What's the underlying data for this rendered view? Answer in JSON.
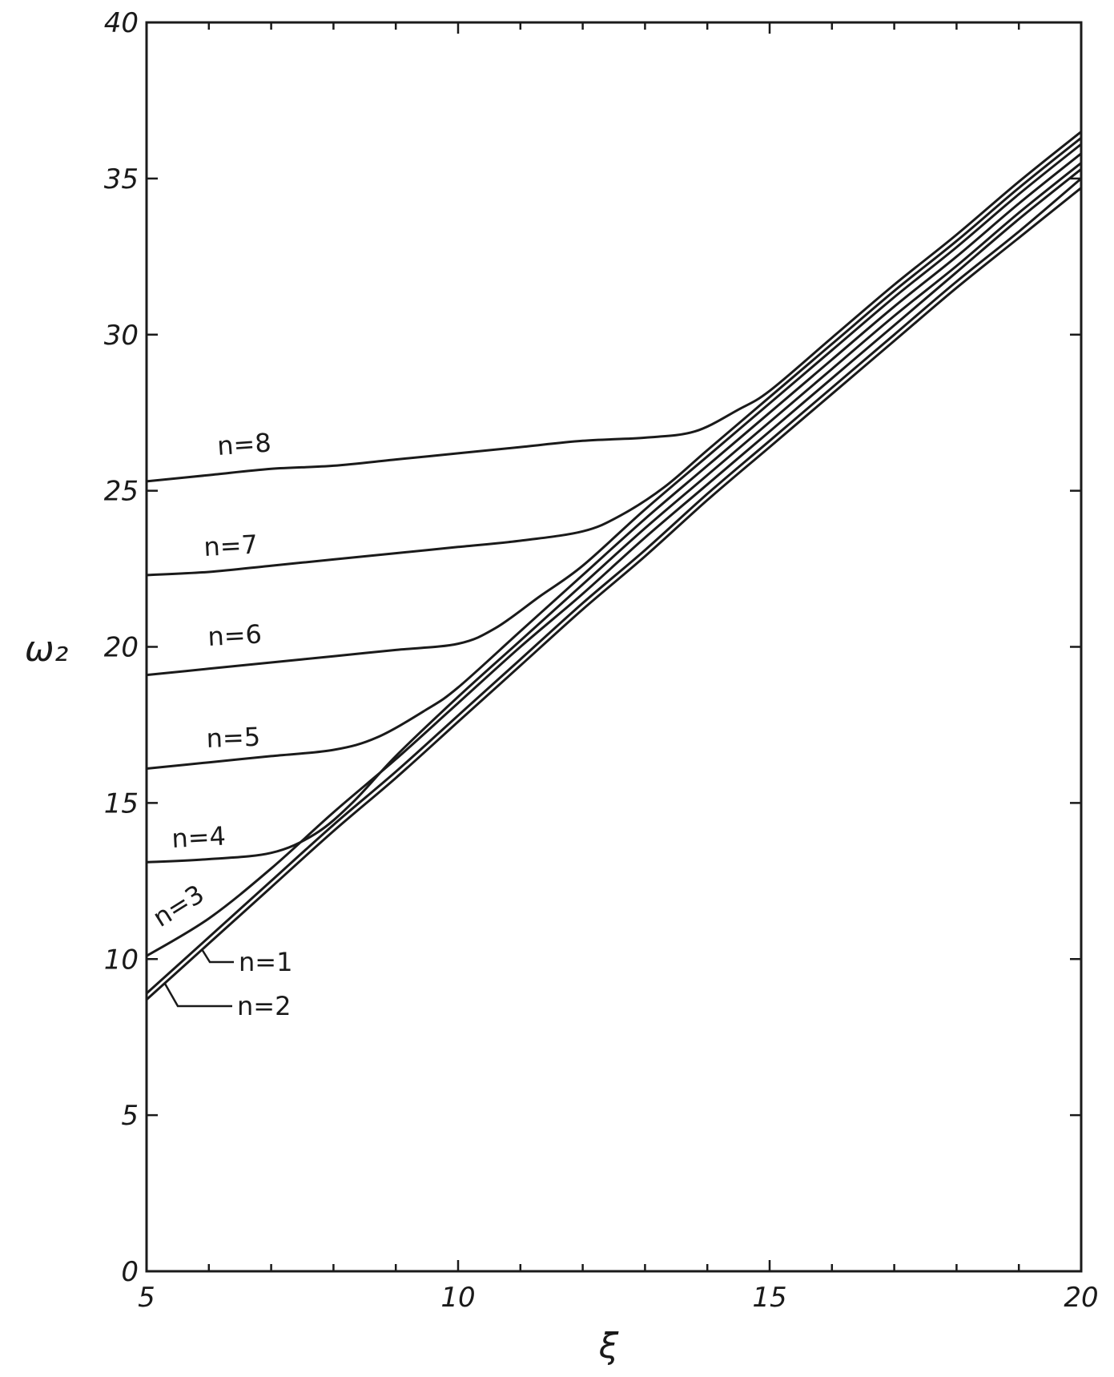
{
  "chart_data": {
    "type": "line",
    "title": "",
    "xlabel": "ξ",
    "ylabel": "ω₂",
    "xlim": [
      5,
      20
    ],
    "ylim": [
      0,
      40
    ],
    "xticks": [
      5,
      10,
      15,
      20
    ],
    "yticks": [
      0,
      5,
      10,
      15,
      20,
      25,
      30,
      35,
      40
    ],
    "grid": false,
    "legend": "none",
    "x_tick_labels": [
      "5",
      "10",
      "15",
      "20"
    ],
    "y_tick_labels": [
      "0",
      "5",
      "10",
      "15",
      "20",
      "25",
      "30",
      "35",
      "40"
    ],
    "colors": {
      "line": "#1a1a1a",
      "background": "#ffffff"
    },
    "series": [
      {
        "name": "n=1",
        "x": [
          5,
          6,
          7,
          8,
          9,
          10,
          11,
          12,
          13,
          14,
          15,
          16,
          17,
          18,
          19,
          20
        ],
        "y": [
          8.9,
          10.7,
          12.5,
          14.3,
          16.0,
          17.8,
          19.6,
          21.4,
          23.1,
          24.9,
          26.6,
          28.3,
          30.0,
          31.7,
          33.3,
          35.0
        ]
      },
      {
        "name": "n=2",
        "x": [
          5,
          6,
          7,
          8,
          9,
          10,
          11,
          12,
          13,
          14,
          15,
          16,
          17,
          18,
          19,
          20
        ],
        "y": [
          8.7,
          10.5,
          12.3,
          14.1,
          15.8,
          17.6,
          19.4,
          21.2,
          22.9,
          24.7,
          26.4,
          28.1,
          29.8,
          31.5,
          33.1,
          34.7
        ]
      },
      {
        "name": "n=3",
        "x": [
          5,
          6,
          7,
          8,
          9,
          10,
          11,
          12,
          13,
          14,
          15,
          16,
          17,
          18,
          19,
          20
        ],
        "y": [
          10.1,
          11.3,
          12.9,
          14.7,
          16.4,
          18.2,
          20.0,
          21.7,
          23.5,
          25.2,
          26.9,
          28.6,
          30.3,
          32.0,
          33.7,
          35.3
        ]
      },
      {
        "name": "n=4",
        "x": [
          5,
          6,
          7,
          7.7,
          8.3,
          9,
          10,
          11,
          12,
          13,
          14,
          15,
          16,
          17,
          18,
          19,
          20
        ],
        "y": [
          13.1,
          13.2,
          13.4,
          14.0,
          15.0,
          16.5,
          18.4,
          20.2,
          22.0,
          23.8,
          25.5,
          27.2,
          28.9,
          30.6,
          32.2,
          33.9,
          35.5
        ]
      },
      {
        "name": "n=5",
        "x": [
          5,
          6,
          7,
          8,
          8.7,
          9.5,
          10,
          11,
          12,
          13,
          14,
          15,
          16,
          17,
          18,
          19,
          20
        ],
        "y": [
          16.1,
          16.3,
          16.5,
          16.7,
          17.1,
          18.0,
          18.7,
          20.5,
          22.3,
          24.1,
          25.8,
          27.5,
          29.2,
          30.9,
          32.5,
          34.2,
          35.8
        ]
      },
      {
        "name": "n=6",
        "x": [
          5,
          6,
          7,
          8,
          9,
          10,
          10.6,
          11.3,
          12,
          13,
          14,
          15,
          16,
          17,
          18,
          19,
          20
        ],
        "y": [
          19.1,
          19.3,
          19.5,
          19.7,
          19.9,
          20.1,
          20.6,
          21.6,
          22.6,
          24.4,
          26.1,
          27.8,
          29.5,
          31.2,
          32.8,
          34.5,
          36.1
        ]
      },
      {
        "name": "n=7",
        "x": [
          5,
          6,
          7,
          8,
          9,
          10,
          11,
          12,
          12.6,
          13.3,
          14,
          15,
          16,
          17,
          18,
          19,
          20
        ],
        "y": [
          22.3,
          22.4,
          22.6,
          22.8,
          23.0,
          23.2,
          23.4,
          23.7,
          24.2,
          25.1,
          26.3,
          28.0,
          29.7,
          31.4,
          33.0,
          34.7,
          36.3
        ]
      },
      {
        "name": "n=8",
        "x": [
          5,
          6,
          7,
          8,
          9,
          10,
          11,
          12,
          13,
          13.8,
          14.5,
          15,
          16,
          17,
          18,
          19,
          20
        ],
        "y": [
          25.3,
          25.5,
          25.7,
          25.8,
          26.0,
          26.2,
          26.4,
          26.6,
          26.7,
          26.9,
          27.6,
          28.2,
          29.9,
          31.6,
          33.2,
          34.9,
          36.5
        ]
      }
    ]
  }
}
